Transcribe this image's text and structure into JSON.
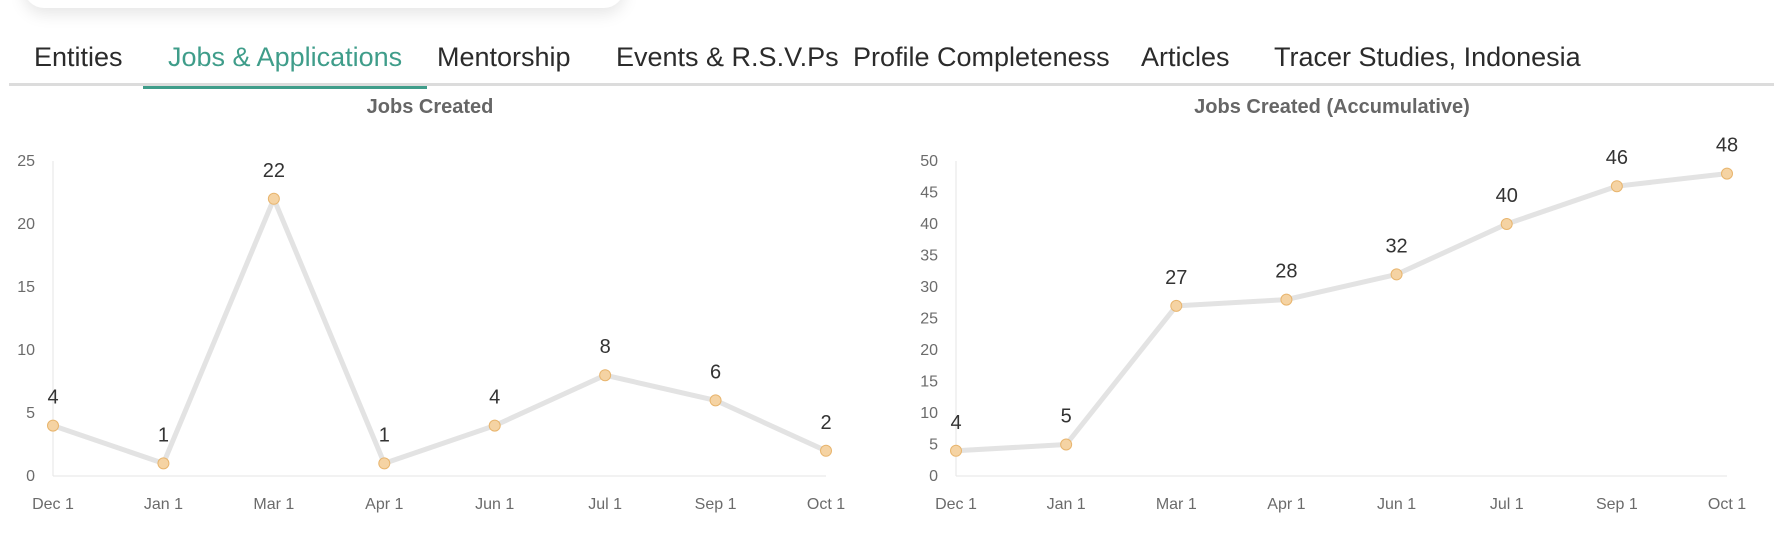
{
  "tabs": [
    {
      "label": "Entities",
      "active": false
    },
    {
      "label": "Jobs & Applications",
      "active": true
    },
    {
      "label": "Mentorship",
      "active": false
    },
    {
      "label": "Events & R.S.V.Ps",
      "active": false
    },
    {
      "label": "Profile Completeness",
      "active": false
    },
    {
      "label": "Articles",
      "active": false
    },
    {
      "label": "Tracer Studies, Indonesia",
      "active": false
    }
  ],
  "colors": {
    "accent": "#3f9d8a",
    "line": "#e3e3e3",
    "point": "#f5d3a3",
    "point_stroke": "#e8b56e"
  },
  "chart_data": [
    {
      "type": "line",
      "title": "Jobs Created",
      "categories": [
        "Dec 1",
        "Jan 1",
        "Mar 1",
        "Apr 1",
        "Jun 1",
        "Jul 1",
        "Sep 1",
        "Oct 1"
      ],
      "values": [
        4,
        1,
        22,
        1,
        4,
        8,
        6,
        2
      ],
      "yticks": [
        0,
        5,
        10,
        15,
        20,
        25
      ],
      "ylim": [
        0,
        25
      ],
      "xlabel": "",
      "ylabel": "",
      "grid": false,
      "data_labels": true
    },
    {
      "type": "line",
      "title": "Jobs Created (Accumulative)",
      "categories": [
        "Dec 1",
        "Jan 1",
        "Mar 1",
        "Apr 1",
        "Jun 1",
        "Jul 1",
        "Sep 1",
        "Oct 1"
      ],
      "values": [
        4,
        5,
        27,
        28,
        32,
        40,
        46,
        48
      ],
      "yticks": [
        0,
        5,
        10,
        15,
        20,
        25,
        30,
        35,
        40,
        45,
        50
      ],
      "ylim": [
        0,
        50
      ],
      "xlabel": "",
      "ylabel": "",
      "grid": false,
      "data_labels": true
    }
  ]
}
